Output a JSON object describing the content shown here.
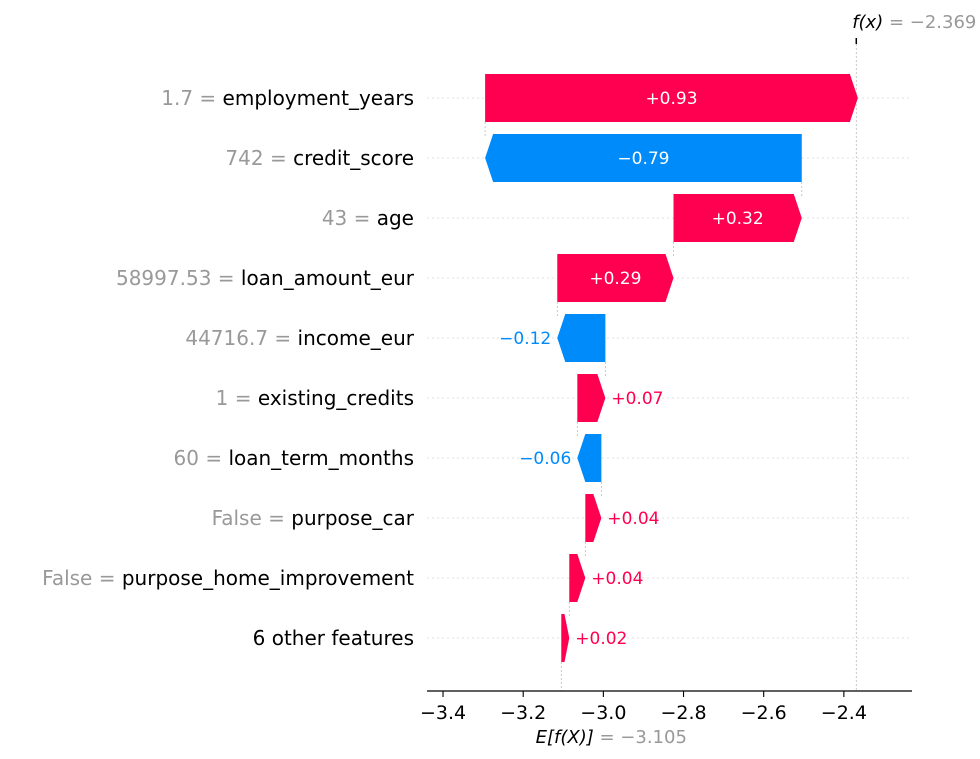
{
  "chart_data": {
    "type": "waterfall",
    "base_value": -3.105,
    "output_value": -2.369,
    "base_label": "E[f(X)]",
    "output_label": "f(x)",
    "base_value_text": " = −3.105",
    "output_value_text": " = −2.369",
    "xlim": [
      -3.44,
      -2.23
    ],
    "x_ticks": [
      -3.4,
      -3.2,
      -3.0,
      -2.8,
      -2.6,
      -2.4
    ],
    "x_tick_labels": [
      "−3.4",
      "−3.2",
      "−3.0",
      "−2.8",
      "−2.6",
      "−2.4"
    ],
    "features": [
      {
        "value_text": "1.7",
        "name": "employment_years",
        "contribution": 0.93,
        "label": "+0.93"
      },
      {
        "value_text": "742",
        "name": "credit_score",
        "contribution": -0.79,
        "label": "−0.79"
      },
      {
        "value_text": "43",
        "name": "age",
        "contribution": 0.32,
        "label": "+0.32"
      },
      {
        "value_text": "58997.53",
        "name": "loan_amount_eur",
        "contribution": 0.29,
        "label": "+0.29"
      },
      {
        "value_text": "44716.7",
        "name": "income_eur",
        "contribution": -0.12,
        "label": "−0.12"
      },
      {
        "value_text": "1",
        "name": "existing_credits",
        "contribution": 0.07,
        "label": "+0.07"
      },
      {
        "value_text": "60",
        "name": "loan_term_months",
        "contribution": -0.06,
        "label": "−0.06"
      },
      {
        "value_text": "False",
        "name": "purpose_car",
        "contribution": 0.04,
        "label": "+0.04"
      },
      {
        "value_text": "False",
        "name": "purpose_home_improvement",
        "contribution": 0.04,
        "label": "+0.04"
      },
      {
        "value_text": "",
        "name": "6 other features",
        "contribution": 0.02,
        "label": "+0.02"
      }
    ],
    "colors": {
      "positive": "#ff0051",
      "negative": "#008bfb",
      "muted": "#999999"
    }
  }
}
